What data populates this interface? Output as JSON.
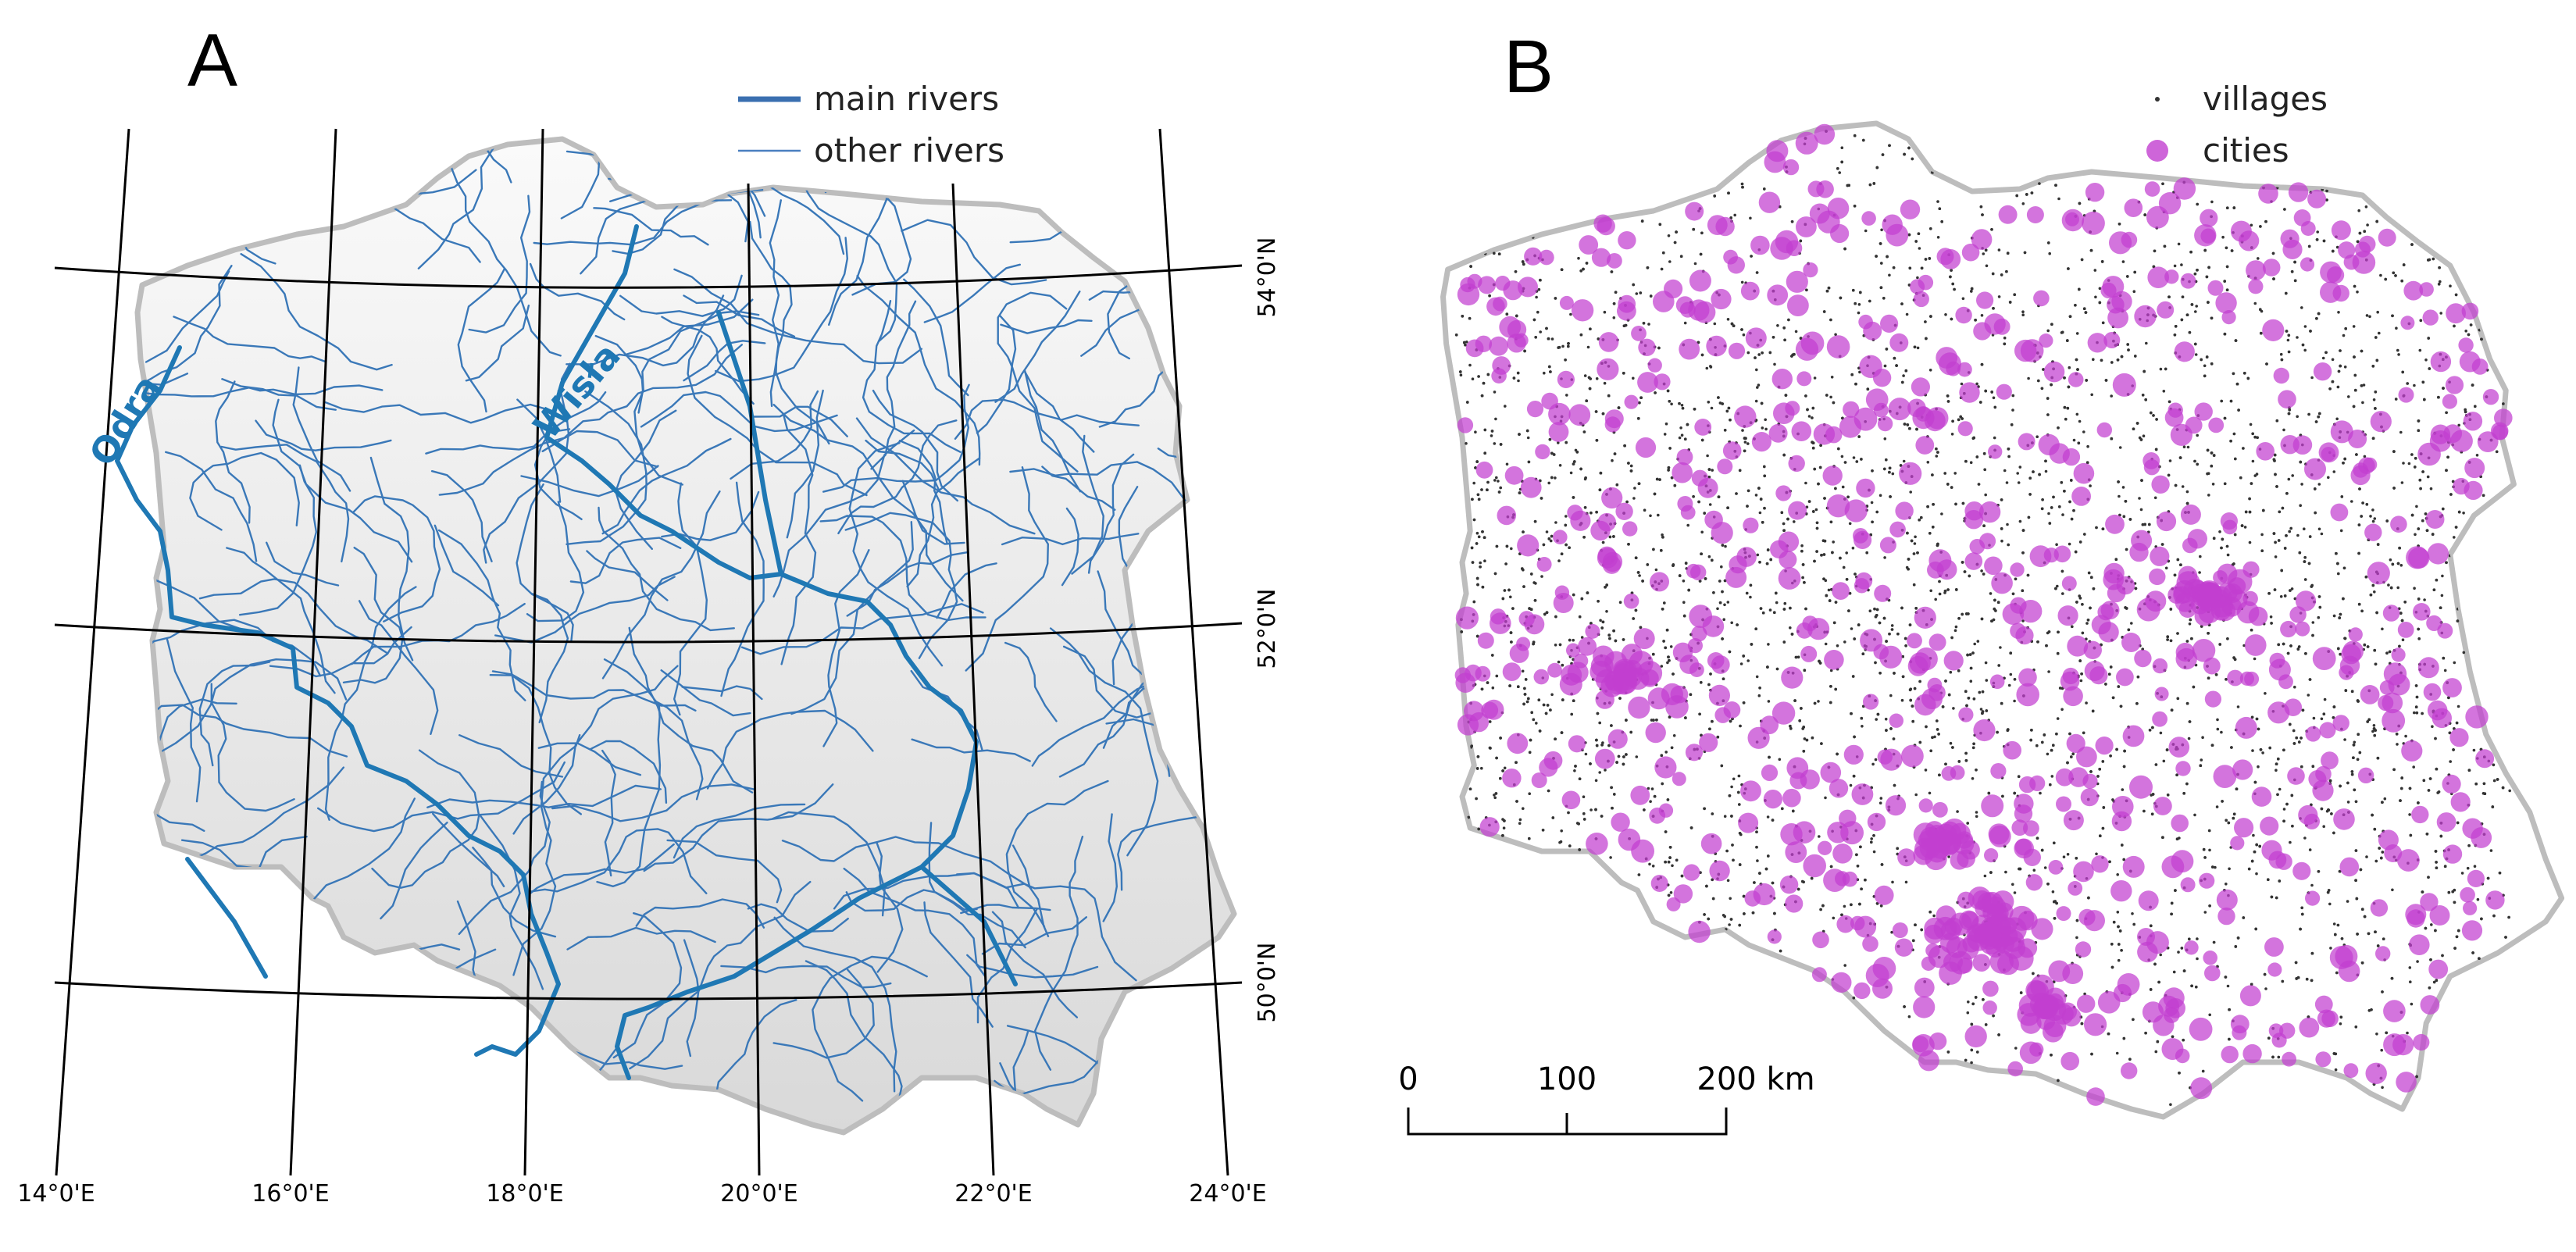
{
  "panel_a": {
    "label": "A",
    "legend": [
      {
        "name": "main rivers",
        "color": "#3a6fb0",
        "style": "thick-line"
      },
      {
        "name": "other rivers",
        "color": "#4a7fc0",
        "style": "thin-line"
      }
    ],
    "river_labels": [
      "Odra",
      "Wisła"
    ],
    "longitude_ticks": [
      "14°0'E",
      "16°0'E",
      "18°0'E",
      "20°0'E",
      "22°0'E",
      "24°0'E"
    ],
    "latitude_ticks": [
      "54°0'N",
      "52°0'N",
      "50°0'N"
    ],
    "colors": {
      "main_river": "#1f78b4",
      "other_river": "#3a78b8",
      "border": "#bdbdbd",
      "land_top": "#fafafa",
      "land_bottom": "#d9d9d9"
    }
  },
  "panel_b": {
    "label": "B",
    "legend": [
      {
        "name": "villages",
        "color": "#333333",
        "style": "small-dot"
      },
      {
        "name": "cities",
        "color": "#c23fd0",
        "style": "large-dot"
      }
    ],
    "scale_bar": {
      "labels": [
        "0",
        "100",
        "200 km"
      ]
    },
    "colors": {
      "village": "#333333",
      "city": "#c23fd0",
      "border": "#bdbdbd"
    }
  }
}
